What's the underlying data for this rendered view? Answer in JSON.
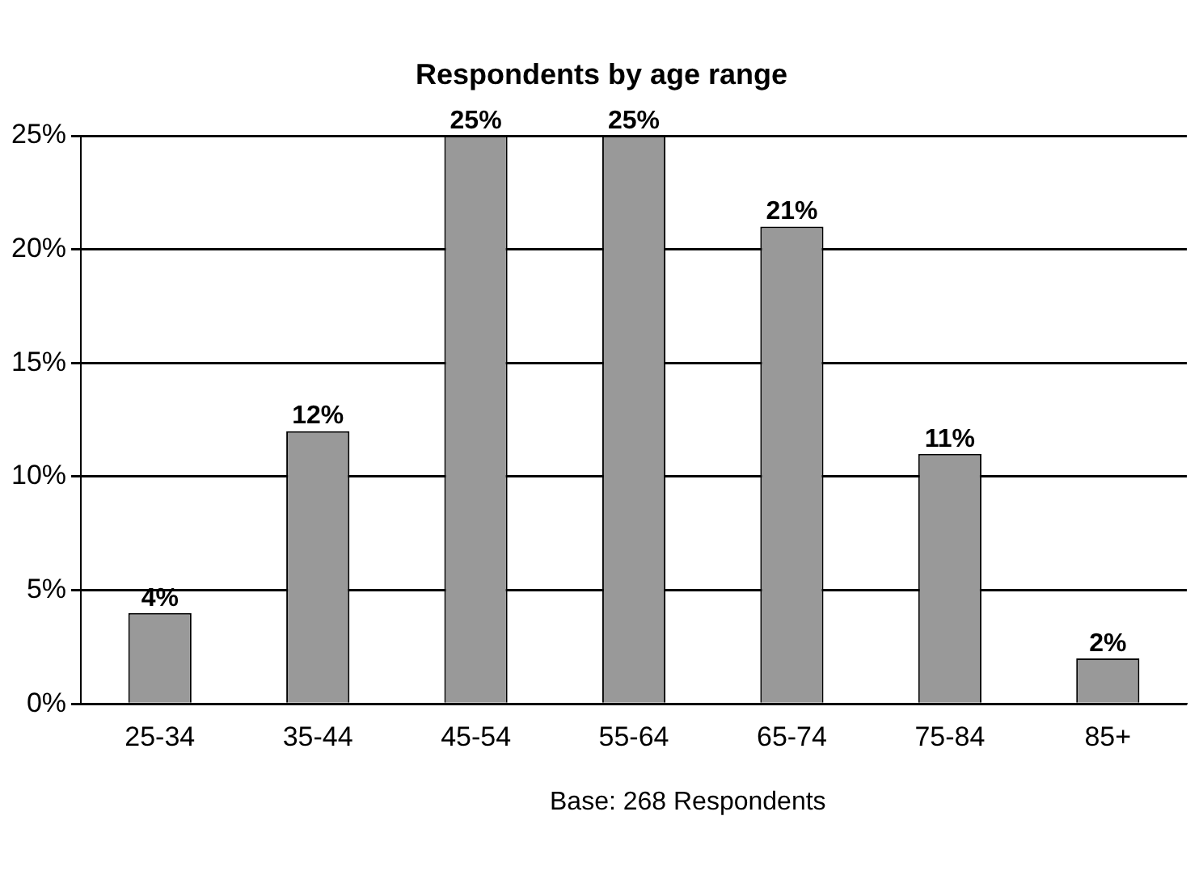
{
  "chart_data": {
    "type": "bar",
    "title": "Respondents by age range",
    "categories": [
      "25-34",
      "35-44",
      "45-54",
      "55-64",
      "65-74",
      "75-84",
      "85+"
    ],
    "values": [
      4,
      12,
      25,
      25,
      21,
      11,
      2
    ],
    "value_labels": [
      "4%",
      "12%",
      "25%",
      "25%",
      "21%",
      "11%",
      "2%"
    ],
    "color": "#999999",
    "ylim": [
      0,
      25
    ],
    "yticks": [
      {
        "value": 0,
        "label": "0%"
      },
      {
        "value": 5,
        "label": "5%"
      },
      {
        "value": 10,
        "label": "10%"
      },
      {
        "value": 15,
        "label": "15%"
      },
      {
        "value": 20,
        "label": "20%"
      },
      {
        "value": 25,
        "label": "25%"
      }
    ],
    "grid": "y",
    "annotations": [
      "Base: 268 Respondents"
    ]
  }
}
